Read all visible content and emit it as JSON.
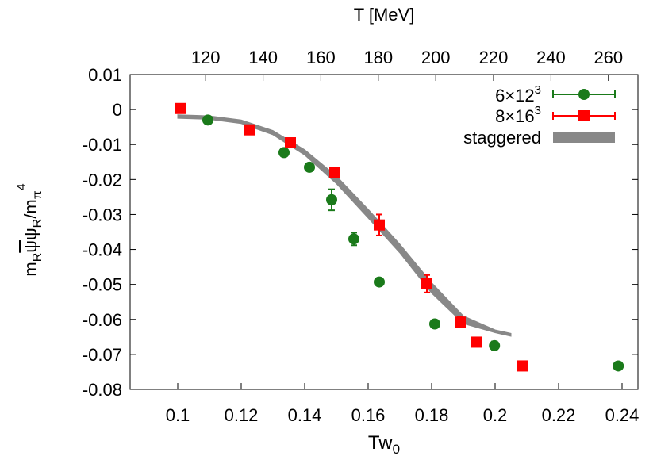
{
  "chart_data": {
    "type": "scatter",
    "title": "",
    "xlabel": "Tw",
    "xlabel_sub": "0",
    "top_xlabel": "T [MeV]",
    "ylabel_parts": [
      "m",
      "R",
      "ψ",
      "ψ",
      "R",
      "/m",
      "π",
      "4"
    ],
    "xlim": [
      0.085,
      0.245
    ],
    "ylim": [
      -0.08,
      0.01
    ],
    "x_ticks": [
      0.1,
      0.12,
      0.14,
      0.16,
      0.18,
      0.2,
      0.22,
      0.24
    ],
    "x_tick_labels": [
      "0.1",
      "0.12",
      "0.14",
      "0.16",
      "0.18",
      "0.2",
      "0.22",
      "0.24"
    ],
    "y_ticks": [
      0.01,
      0,
      -0.01,
      -0.02,
      -0.03,
      -0.04,
      -0.05,
      -0.06,
      -0.07,
      -0.08
    ],
    "y_tick_labels": [
      "0.01",
      "0",
      "-0.01",
      "-0.02",
      "-0.03",
      "-0.04",
      "-0.05",
      "-0.06",
      "-0.07",
      "-0.08"
    ],
    "top_ticks_Tw0": [
      0.1088,
      0.1269,
      0.1451,
      0.1632,
      0.1813,
      0.1995,
      0.2176,
      0.2357
    ],
    "top_tick_labels": [
      "120",
      "140",
      "160",
      "180",
      "200",
      "220",
      "240",
      "260"
    ],
    "grid": false,
    "legend_position": "top-right",
    "series": [
      {
        "name": "6×12",
        "name_sup": "3",
        "marker": "circle",
        "color": "#1a7a1a",
        "points": [
          {
            "x": 0.1095,
            "y": -0.003,
            "err": 0.0004
          },
          {
            "x": 0.1335,
            "y": -0.0123,
            "err": 0.0008
          },
          {
            "x": 0.1415,
            "y": -0.0165,
            "err": 0.0008
          },
          {
            "x": 0.1485,
            "y": -0.0258,
            "err": 0.003
          },
          {
            "x": 0.1555,
            "y": -0.037,
            "err": 0.0018
          },
          {
            "x": 0.1635,
            "y": -0.0493,
            "err": 0.0005
          },
          {
            "x": 0.181,
            "y": -0.0613,
            "err": 0.0005
          },
          {
            "x": 0.1998,
            "y": -0.0675,
            "err": 0.0012
          },
          {
            "x": 0.2388,
            "y": -0.0733,
            "err": 0.0005
          }
        ]
      },
      {
        "name": "8×16",
        "name_sup": "3",
        "marker": "square",
        "color": "#ff0000",
        "points": [
          {
            "x": 0.101,
            "y": 0.0003,
            "err": 0.0004
          },
          {
            "x": 0.1225,
            "y": -0.0058,
            "err": 0.0005
          },
          {
            "x": 0.1355,
            "y": -0.0095,
            "err": 0.0008
          },
          {
            "x": 0.1495,
            "y": -0.018,
            "err": 0.001
          },
          {
            "x": 0.1635,
            "y": -0.033,
            "err": 0.003
          },
          {
            "x": 0.1785,
            "y": -0.0498,
            "err": 0.0025
          },
          {
            "x": 0.189,
            "y": -0.0608,
            "err": 0.0015
          },
          {
            "x": 0.194,
            "y": -0.0665,
            "err": 0.001
          },
          {
            "x": 0.2085,
            "y": -0.0733,
            "err": 0.0005
          }
        ]
      },
      {
        "name": "staggered",
        "marker": "band",
        "color": "#888888",
        "x": [
          0.1,
          0.11,
          0.12,
          0.13,
          0.14,
          0.15,
          0.16,
          0.17,
          0.18,
          0.19,
          0.2,
          0.205
        ],
        "upper": [
          -0.0015,
          -0.0018,
          -0.003,
          -0.006,
          -0.0115,
          -0.019,
          -0.0285,
          -0.0385,
          -0.0495,
          -0.059,
          -0.063,
          -0.064
        ],
        "lower": [
          -0.0025,
          -0.0028,
          -0.004,
          -0.0072,
          -0.013,
          -0.0212,
          -0.031,
          -0.041,
          -0.0525,
          -0.0612,
          -0.0638,
          -0.0648
        ]
      }
    ]
  }
}
